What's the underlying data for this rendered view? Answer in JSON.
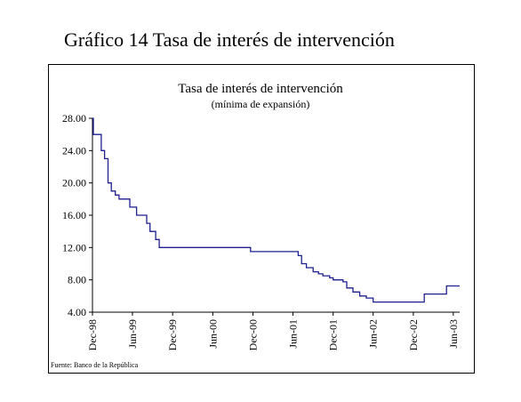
{
  "page": {
    "title": "Gráfico 14 Tasa de interés de intervención"
  },
  "chart_data": {
    "type": "line",
    "title": "Tasa de interés de intervención",
    "subtitle": "(mínima de expansión)",
    "source": "Fuente: Banco de la República",
    "xlabel": "",
    "ylabel": "",
    "ylim": [
      4,
      28
    ],
    "yticks": [
      "4.00",
      "8.00",
      "12.00",
      "16.00",
      "20.00",
      "24.00",
      "28.00"
    ],
    "xticks": [
      "Dec-98",
      "Jun-99",
      "Dec-99",
      "Jun-00",
      "Dec-00",
      "Jun-01",
      "Dec-01",
      "Jun-02",
      "Dec-02",
      "Jun-03"
    ],
    "grid": false,
    "legend": "none",
    "line_color": "#1f1f8f",
    "series": [
      {
        "type": "step",
        "x": [
          "1998-12-01",
          "1998-12-05",
          "1999-01-10",
          "1999-01-25",
          "1999-02-10",
          "1999-02-25",
          "1999-03-15",
          "1999-04-01",
          "1999-04-25",
          "1999-05-20",
          "1999-06-20",
          "1999-07-15",
          "1999-08-05",
          "1999-08-20",
          "1999-09-15",
          "1999-10-01",
          "1999-10-20",
          "1999-11-10",
          "1999-12-01",
          "2000-11-20",
          "2001-06-15",
          "2001-06-25",
          "2001-07-10",
          "2001-08-01",
          "2001-09-01",
          "2001-09-25",
          "2001-10-15",
          "2001-11-15",
          "2001-12-01",
          "2002-01-15",
          "2002-02-01",
          "2002-03-01",
          "2002-04-01",
          "2002-05-01",
          "2002-06-01",
          "2003-01-20",
          "2003-05-01",
          "2003-06-30"
        ],
        "y": [
          28.0,
          26.0,
          24.0,
          23.0,
          20.0,
          19.0,
          18.5,
          18.0,
          18.0,
          17.0,
          16.0,
          16.0,
          15.0,
          14.0,
          13.0,
          12.0,
          12.0,
          12.0,
          12.0,
          11.5,
          11.5,
          11.0,
          10.0,
          9.5,
          9.0,
          8.75,
          8.5,
          8.25,
          8.0,
          7.75,
          7.0,
          6.5,
          6.0,
          5.75,
          5.25,
          6.25,
          7.25,
          7.25
        ]
      }
    ]
  }
}
